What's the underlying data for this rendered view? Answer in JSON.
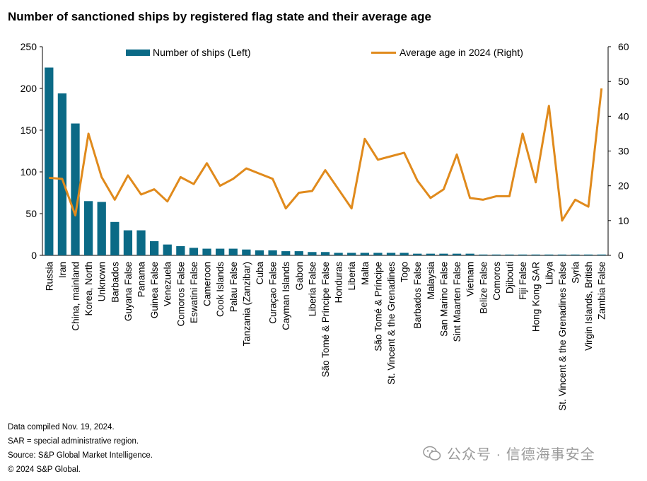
{
  "title": "Number of sanctioned ships by registered flag state and their average age",
  "chart_data": {
    "type": "bar+line",
    "title": "Number of sanctioned ships by registered flag state and their average age",
    "categories": [
      "Russia",
      "Iran",
      "China, mainland",
      "Korea, North",
      "Unknown",
      "Barbados",
      "Guyana False",
      "Panama",
      "Guinea False",
      "Venezuela",
      "Comoros False",
      "Eswatini False",
      "Cameroon",
      "Cook Islands",
      "Palau False",
      "Tanzania (Zanzibar)",
      "Cuba",
      "Curaçao False",
      "Cayman Islands",
      "Gabon",
      "Liberia False",
      "São Tomé & Príncipe False",
      "Honduras",
      "Liberia",
      "Malta",
      "São Tomé & Príncipe",
      "St. Vincent & the Grenadines",
      "Togo",
      "Barbados False",
      "Malaysia",
      "San Marino False",
      "Sint Maarten False",
      "Vietnam",
      "Belize False",
      "Comoros",
      "Djibouti",
      "Fiji False",
      "Hong Kong SAR",
      "Libya",
      "St. Vincent & the Grenadines False",
      "Syria",
      "Virgin Islands, British",
      "Zambia False"
    ],
    "series": [
      {
        "name": "Number of ships (Left)",
        "type": "bar",
        "axis": "left",
        "color": "#0b6a86",
        "values": [
          225,
          194,
          158,
          65,
          64,
          40,
          30,
          30,
          17,
          13,
          11,
          9,
          8,
          8,
          8,
          7,
          6,
          6,
          5,
          5,
          4,
          4,
          3,
          3,
          3,
          3,
          3,
          3,
          2,
          2,
          2,
          2,
          2,
          1,
          1,
          1,
          1,
          1,
          1,
          1,
          1,
          1,
          1
        ]
      },
      {
        "name": "Average age in 2024 (Right)",
        "type": "line",
        "axis": "right",
        "color": "#e08a1c",
        "values": [
          22.3,
          22,
          11.5,
          35,
          22.5,
          16,
          23,
          17.5,
          19,
          15.5,
          22.5,
          20.5,
          26.5,
          20,
          22,
          25,
          23.5,
          22,
          13.5,
          18,
          18.5,
          24.5,
          19,
          13.5,
          33.5,
          27.5,
          28.5,
          29.5,
          21.5,
          16.5,
          19,
          29,
          16.5,
          16,
          17,
          17,
          35,
          21,
          43,
          10,
          16,
          14,
          48
        ]
      }
    ],
    "yleft": {
      "min": 0,
      "max": 250,
      "ticks": [
        0,
        50,
        100,
        150,
        200,
        250
      ]
    },
    "yright": {
      "min": 0,
      "max": 60,
      "ticks": [
        0,
        10,
        20,
        30,
        40,
        50,
        60
      ]
    },
    "legend_position": "top"
  },
  "footnotes": [
    "Data compiled Nov. 19, 2024.",
    "SAR = special administrative region.",
    "Source: S&P Global Market Intelligence.",
    "© 2024 S&P Global."
  ],
  "watermark": "公众号 · 信德海事安全"
}
